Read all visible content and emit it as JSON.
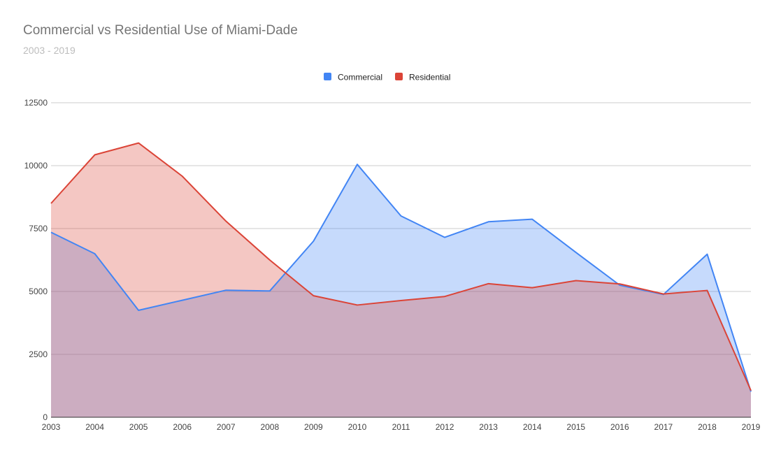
{
  "chart_data": {
    "type": "area",
    "title": "Commercial vs Residential Use of Miami-Dade",
    "subtitle": "2003 - 2019",
    "xlabel": "",
    "ylabel": "",
    "x": [
      "2003",
      "2004",
      "2005",
      "2006",
      "2007",
      "2008",
      "2009",
      "2010",
      "2011",
      "2012",
      "2013",
      "2014",
      "2015",
      "2016",
      "2017",
      "2018",
      "2019"
    ],
    "series": [
      {
        "name": "Commercial",
        "color": "#4285f4",
        "values": [
          7350,
          6500,
          4250,
          4650,
          5050,
          5020,
          7000,
          10050,
          8000,
          7150,
          7770,
          7870,
          6550,
          5250,
          4880,
          6480,
          1020
        ]
      },
      {
        "name": "Residential",
        "color": "#db4437",
        "values": [
          8500,
          10430,
          10900,
          9580,
          7790,
          6250,
          4830,
          4460,
          4640,
          4800,
          5310,
          5150,
          5430,
          5300,
          4900,
          5040,
          1060
        ]
      }
    ],
    "ylim": [
      0,
      12500
    ],
    "yticks": [
      "0",
      "2500",
      "5000",
      "7500",
      "10000",
      "12500"
    ],
    "grid": true,
    "legend_position": "top-center",
    "area_opacity": 0.3
  }
}
